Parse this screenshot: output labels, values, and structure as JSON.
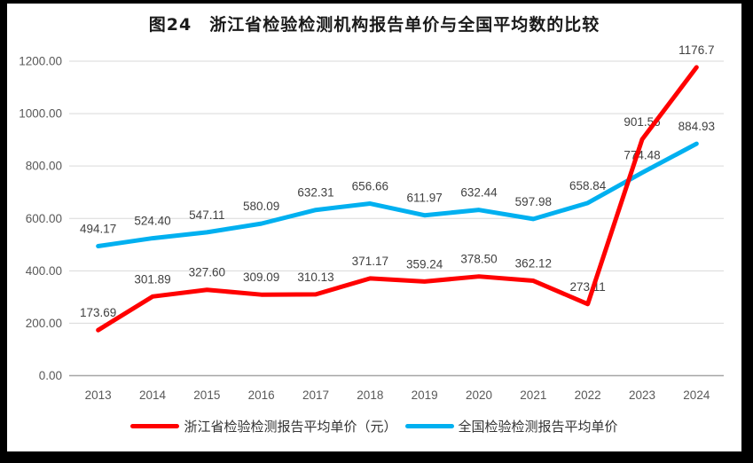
{
  "window": {
    "frame_color": "#000000",
    "background": "#ffffff"
  },
  "chart_data": {
    "type": "line",
    "title": "图24　浙江省检验检测机构报告单价与全国平均数的比较",
    "categories": [
      "2013",
      "2014",
      "2015",
      "2016",
      "2017",
      "2018",
      "2019",
      "2020",
      "2021",
      "2022",
      "2023",
      "2024"
    ],
    "series": [
      {
        "name": "浙江省检验检测报告平均单价（元）",
        "color": "#FF0000",
        "values": [
          173.69,
          301.89,
          327.6,
          309.09,
          310.13,
          371.17,
          359.24,
          378.5,
          362.12,
          273.11,
          901.56,
          1176.7
        ],
        "labels": [
          "173.69",
          "301.89",
          "327.60",
          "309.09",
          "310.13",
          "371.17",
          "359.24",
          "378.50",
          "362.12",
          "273.11",
          "901.56",
          "1176.7"
        ]
      },
      {
        "name": "全国检验检测报告平均单价",
        "color": "#00B0F0",
        "values": [
          494.17,
          524.4,
          547.11,
          580.09,
          632.31,
          656.66,
          611.97,
          632.44,
          597.98,
          658.84,
          774.48,
          884.93
        ],
        "labels": [
          "494.17",
          "524.40",
          "547.11",
          "580.09",
          "632.31",
          "656.66",
          "611.97",
          "632.44",
          "597.98",
          "658.84",
          "774.48",
          "884.93"
        ]
      }
    ],
    "ylim": [
      0,
      1200
    ],
    "yticks": [
      {
        "value": 0,
        "label": "0.00"
      },
      {
        "value": 200,
        "label": "200.00"
      },
      {
        "value": 400,
        "label": "400.00"
      },
      {
        "value": 600,
        "label": "600.00"
      },
      {
        "value": 800,
        "label": "800.00"
      },
      {
        "value": 1000,
        "label": "1000.00"
      },
      {
        "value": 1200,
        "label": "1200.00"
      }
    ],
    "grid": true,
    "legend_position": "bottom",
    "colors": {
      "gridline": "#D9D9D9",
      "axis_line": "#A6A6A6",
      "tick_text": "#595959",
      "data_label_text": "#404040",
      "title_text": "#1a1a1a",
      "legend_text": "#333333"
    }
  }
}
